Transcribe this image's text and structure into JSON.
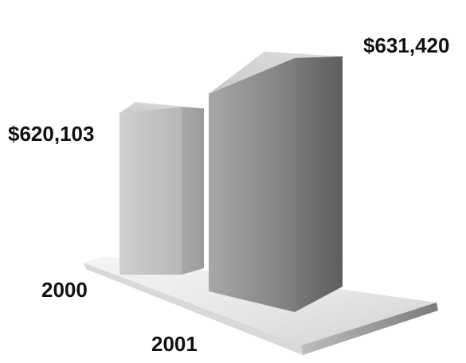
{
  "chart_data": {
    "type": "bar",
    "categories": [
      "2000",
      "2001"
    ],
    "values": [
      620103,
      631420
    ],
    "value_labels": [
      "$620,103",
      "$631,420"
    ],
    "title": "",
    "xlabel": "",
    "ylabel": "",
    "grid": false,
    "legend": "none",
    "style": "3d-column",
    "colors": {
      "bar_light": "#d9d9d9",
      "bar_mid": "#9b9b9b",
      "bar_dark": "#6a6a6a",
      "floor": "#e6e6e6"
    }
  }
}
